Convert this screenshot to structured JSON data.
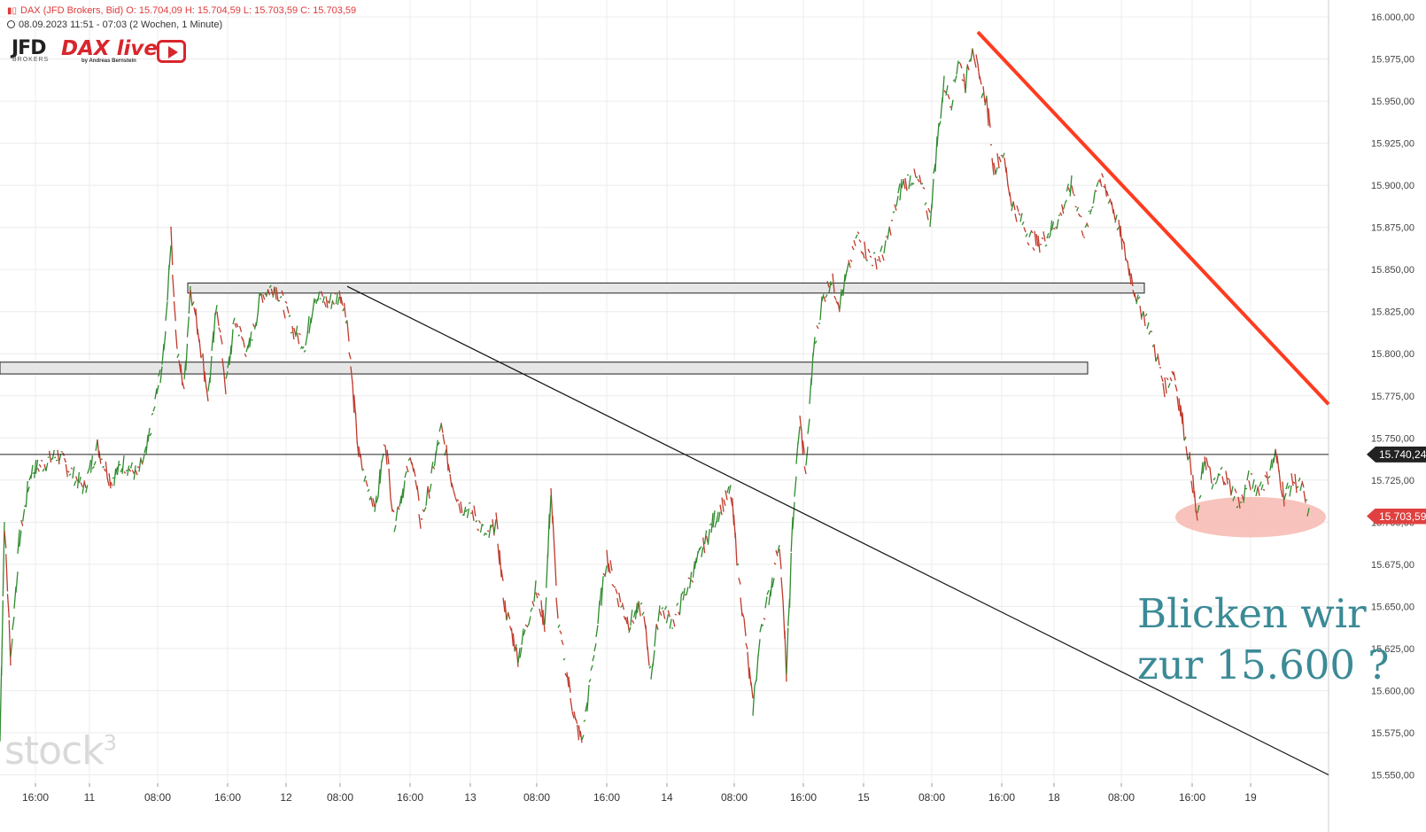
{
  "header": {
    "line1": "DAX (JFD Brokers, Bid)  O: 15.704,09  H: 15.704,59  L: 15.703,59  C: 15.703,59",
    "line2": "08.09.2023 11:51 - 07:03   (2 Wochen, 1 Minute)"
  },
  "logos": {
    "jfd": "JFD",
    "jfd_sub": "BROKERS",
    "dax_live": "DAX live",
    "dax_sub": "by Andreas Bernstein",
    "play_icon": "play-icon"
  },
  "watermark": "stock",
  "watermark_sup": "3",
  "annotation": {
    "line1": "Blicken wir",
    "line2": "zur 15.600 ?"
  },
  "price_labels": {
    "level": "15.740,24",
    "close": "15.703,59"
  },
  "colors": {
    "up": "#2e8b2e",
    "down": "#c0392b",
    "trendline_red": "#ff3b1f",
    "ellipse": "#f7b8b0",
    "annotation": "#3b8a96"
  },
  "chart_data": {
    "type": "line",
    "series": [
      {
        "values": [
          [
            0,
            15570
          ],
          [
            5,
            15700
          ],
          [
            12,
            15620
          ],
          [
            22,
            15690
          ],
          [
            35,
            15730
          ],
          [
            50,
            15735
          ],
          [
            65,
            15740
          ],
          [
            80,
            15730
          ],
          [
            95,
            15720
          ],
          [
            110,
            15745
          ],
          [
            125,
            15725
          ],
          [
            140,
            15735
          ],
          [
            155,
            15728
          ],
          [
            165,
            15740
          ],
          [
            175,
            15770
          ],
          [
            185,
            15800
          ],
          [
            193,
            15870
          ],
          [
            200,
            15800
          ],
          [
            208,
            15780
          ],
          [
            215,
            15840
          ],
          [
            225,
            15810
          ],
          [
            235,
            15775
          ],
          [
            245,
            15830
          ],
          [
            255,
            15780
          ],
          [
            265,
            15820
          ],
          [
            280,
            15800
          ],
          [
            295,
            15835
          ],
          [
            310,
            15840
          ],
          [
            320,
            15830
          ],
          [
            330,
            15815
          ],
          [
            345,
            15805
          ],
          [
            355,
            15835
          ],
          [
            370,
            15830
          ],
          [
            385,
            15835
          ],
          [
            392,
            15820
          ],
          [
            398,
            15780
          ],
          [
            405,
            15740
          ],
          [
            415,
            15720
          ],
          [
            425,
            15710
          ],
          [
            435,
            15750
          ],
          [
            445,
            15700
          ],
          [
            455,
            15720
          ],
          [
            465,
            15740
          ],
          [
            475,
            15700
          ],
          [
            485,
            15720
          ],
          [
            498,
            15755
          ],
          [
            510,
            15725
          ],
          [
            520,
            15710
          ],
          [
            535,
            15705
          ],
          [
            550,
            15690
          ],
          [
            560,
            15700
          ],
          [
            570,
            15650
          ],
          [
            585,
            15620
          ],
          [
            595,
            15640
          ],
          [
            605,
            15660
          ],
          [
            615,
            15640
          ],
          [
            622,
            15720
          ],
          [
            630,
            15640
          ],
          [
            640,
            15610
          ],
          [
            650,
            15580
          ],
          [
            657,
            15570
          ],
          [
            665,
            15600
          ],
          [
            675,
            15640
          ],
          [
            685,
            15680
          ],
          [
            695,
            15660
          ],
          [
            710,
            15640
          ],
          [
            725,
            15650
          ],
          [
            735,
            15610
          ],
          [
            745,
            15650
          ],
          [
            760,
            15640
          ],
          [
            775,
            15660
          ],
          [
            790,
            15680
          ],
          [
            805,
            15700
          ],
          [
            815,
            15710
          ],
          [
            825,
            15718
          ],
          [
            832,
            15680
          ],
          [
            840,
            15640
          ],
          [
            850,
            15590
          ],
          [
            860,
            15640
          ],
          [
            870,
            15660
          ],
          [
            880,
            15690
          ],
          [
            888,
            15610
          ],
          [
            895,
            15700
          ],
          [
            903,
            15760
          ],
          [
            910,
            15730
          ],
          [
            918,
            15800
          ],
          [
            928,
            15830
          ],
          [
            938,
            15845
          ],
          [
            948,
            15830
          ],
          [
            958,
            15850
          ],
          [
            968,
            15870
          ],
          [
            978,
            15860
          ],
          [
            988,
            15855
          ],
          [
            998,
            15860
          ],
          [
            1008,
            15880
          ],
          [
            1018,
            15900
          ],
          [
            1030,
            15905
          ],
          [
            1040,
            15900
          ],
          [
            1050,
            15880
          ],
          [
            1058,
            15925
          ],
          [
            1066,
            15960
          ],
          [
            1074,
            15950
          ],
          [
            1082,
            15975
          ],
          [
            1090,
            15960
          ],
          [
            1098,
            15985
          ],
          [
            1106,
            15960
          ],
          [
            1114,
            15950
          ],
          [
            1122,
            15910
          ],
          [
            1132,
            15920
          ],
          [
            1142,
            15890
          ],
          [
            1152,
            15880
          ],
          [
            1162,
            15870
          ],
          [
            1172,
            15865
          ],
          [
            1182,
            15870
          ],
          [
            1195,
            15880
          ],
          [
            1210,
            15900
          ],
          [
            1225,
            15870
          ],
          [
            1240,
            15905
          ],
          [
            1255,
            15890
          ],
          [
            1265,
            15870
          ],
          [
            1275,
            15850
          ],
          [
            1285,
            15830
          ],
          [
            1295,
            15820
          ],
          [
            1305,
            15800
          ],
          [
            1315,
            15780
          ],
          [
            1325,
            15790
          ],
          [
            1335,
            15760
          ],
          [
            1345,
            15730
          ],
          [
            1352,
            15700
          ],
          [
            1360,
            15740
          ],
          [
            1370,
            15720
          ],
          [
            1380,
            15730
          ],
          [
            1390,
            15720
          ],
          [
            1400,
            15710
          ],
          [
            1410,
            15725
          ],
          [
            1420,
            15720
          ],
          [
            1430,
            15725
          ],
          [
            1440,
            15740
          ],
          [
            1450,
            15715
          ],
          [
            1460,
            15725
          ],
          [
            1470,
            15720
          ],
          [
            1478,
            15704
          ]
        ]
      }
    ],
    "y_ticks": [
      "16.000,00",
      "15.975,00",
      "15.950,00",
      "15.925,00",
      "15.900,00",
      "15.875,00",
      "15.850,00",
      "15.825,00",
      "15.800,00",
      "15.775,00",
      "15.750,00",
      "15.725,00",
      "15.700,00",
      "15.675,00",
      "15.650,00",
      "15.625,00",
      "15.600,00",
      "15.575,00",
      "15.550,00"
    ],
    "y_tick_values": [
      16000,
      15975,
      15950,
      15925,
      15900,
      15875,
      15850,
      15825,
      15800,
      15775,
      15750,
      15725,
      15700,
      15675,
      15650,
      15625,
      15600,
      15575,
      15550
    ],
    "x_ticks": [
      "16:00",
      "11",
      "08:00",
      "16:00",
      "12",
      "08:00",
      "16:00",
      "13",
      "08:00",
      "16:00",
      "14",
      "08:00",
      "16:00",
      "15",
      "08:00",
      "16:00",
      "18",
      "08:00",
      "16:00",
      "19"
    ],
    "x_tick_bars": [
      40,
      101,
      178,
      257,
      323,
      384,
      463,
      531,
      606,
      685,
      753,
      829,
      907,
      975,
      1052,
      1131,
      1190,
      1266,
      1346,
      1412
    ],
    "x_bar_range": [
      0,
      1500
    ],
    "ylim": [
      15545,
      16010
    ],
    "grid": true,
    "level_line": 15740.24,
    "last_close": 15703.59,
    "resistance_zones": [
      {
        "bar_start": 212,
        "bar_end": 1292,
        "y_low": 15836,
        "y_high": 15842
      },
      {
        "bar_start": 0,
        "bar_end": 1228,
        "y_low": 15788,
        "y_high": 15795
      }
    ],
    "trendlines": [
      {
        "from": [
          392,
          15840
        ],
        "to": [
          1500,
          15550
        ],
        "color": "black"
      },
      {
        "from": [
          1104,
          15991
        ],
        "to": [
          1500,
          15770
        ],
        "color": "red"
      }
    ],
    "highlight": {
      "bar_center": 1412,
      "y_center": 15703,
      "bar_radius": 85,
      "y_radius": 12
    }
  }
}
